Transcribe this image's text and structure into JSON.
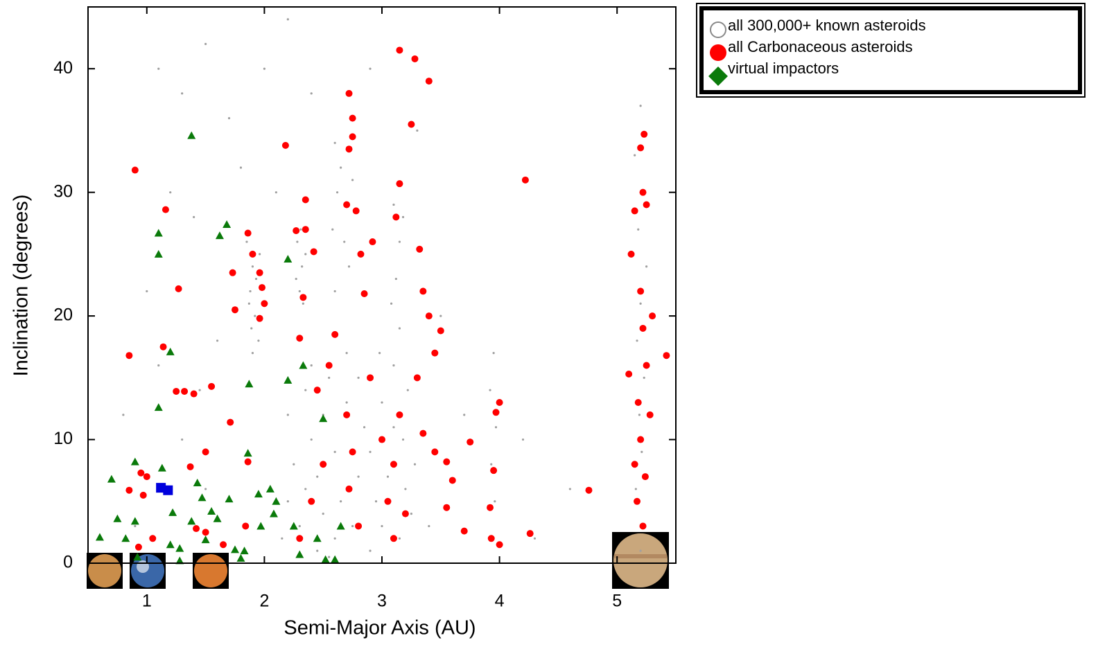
{
  "chart_data": {
    "type": "scatter",
    "x_label": "Semi-Major Axis (AU)",
    "y_label": "Inclination (degrees)",
    "xlim": [
      0.5,
      5.5
    ],
    "ylim": [
      0,
      45
    ],
    "xticks": [
      1,
      2,
      3,
      4,
      5
    ],
    "yticks": [
      0,
      10,
      20,
      30,
      40
    ],
    "series": [
      {
        "name": "all 300,000+ known asteroids",
        "color": "#a0a0a0",
        "marker": "dot",
        "x": [
          1.85,
          1.9,
          1.88,
          1.92,
          1.95,
          1.87,
          1.93,
          1.9,
          1.96,
          1.89,
          2.28,
          2.32,
          2.3,
          2.35,
          2.27,
          2.33,
          2.31,
          2.6,
          2.62,
          2.58,
          2.65,
          2.7,
          2.72,
          2.75,
          2.6,
          2.68,
          3.1,
          3.15,
          3.12,
          3.18,
          3.08,
          3.95,
          3.92,
          3.97,
          3.93,
          3.96,
          3.94,
          5.2,
          5.15,
          5.22,
          5.18,
          5.25,
          5.2,
          5.17,
          5.23,
          5.19,
          5.21,
          5.16,
          5.24,
          5.2,
          1.1,
          1.3,
          1.5,
          1.7,
          1.2,
          1.4,
          1.0,
          1.6,
          0.8,
          1.3,
          1.5,
          0.9,
          2.0,
          2.2,
          2.4,
          1.8,
          2.1,
          3.5,
          3.7,
          3.4,
          4.3,
          4.6,
          3.3,
          2.9,
          4.2,
          1.1,
          1.45,
          2.15,
          2.2,
          2.25,
          2.2,
          2.3,
          2.35,
          2.4,
          2.35,
          2.45,
          2.5,
          2.45,
          2.5,
          2.55,
          2.6,
          2.65,
          2.6,
          2.7,
          2.7,
          2.75,
          2.8,
          2.85,
          2.8,
          2.9,
          2.95,
          2.9,
          3.0,
          3.0,
          3.05,
          3.1,
          3.1,
          3.15,
          3.2,
          3.18,
          3.22,
          3.25,
          3.28,
          2.55,
          2.98,
          3.15,
          2.4
        ],
        "values": [
          26,
          24,
          22,
          20,
          18,
          21,
          23,
          17,
          25,
          19,
          26,
          24,
          22,
          25,
          23,
          21,
          27,
          34,
          30,
          27,
          32,
          29,
          24,
          31,
          22,
          26,
          29,
          26,
          23,
          28,
          21,
          17,
          14,
          11,
          8,
          5,
          2,
          37,
          33,
          30,
          27,
          24,
          21,
          18,
          15,
          12,
          9,
          6,
          3,
          1,
          40,
          38,
          42,
          36,
          30,
          28,
          22,
          18,
          12,
          10,
          6,
          3,
          40,
          44,
          38,
          32,
          30,
          20,
          12,
          3,
          2,
          6,
          35,
          40,
          10,
          16,
          14,
          2,
          5,
          8,
          12,
          3,
          6,
          10,
          14,
          1,
          4,
          7,
          12,
          15,
          2,
          5,
          9,
          13,
          17,
          3,
          7,
          11,
          15,
          1,
          5,
          9,
          13,
          3,
          7,
          11,
          16,
          2,
          6,
          10,
          14,
          4,
          8,
          0.5,
          17,
          19,
          16
        ]
      },
      {
        "name": "all Carbonaceous asteroids",
        "color": "#ff0000",
        "marker": "circle",
        "x": [
          0.9,
          1.16,
          1.27,
          1.14,
          0.85,
          1.25,
          1.32,
          1.4,
          1.55,
          1.71,
          1.5,
          1.86,
          1.84,
          1.0,
          0.95,
          0.97,
          0.85,
          1.05,
          0.93,
          1.37,
          1.42,
          1.5,
          1.65,
          1.73,
          1.86,
          1.9,
          1.96,
          1.98,
          2.0,
          1.96,
          1.75,
          2.18,
          2.27,
          2.35,
          2.33,
          2.35,
          2.3,
          2.42,
          2.72,
          2.75,
          2.75,
          2.72,
          2.7,
          2.78,
          2.82,
          2.92,
          2.85,
          3.15,
          3.28,
          3.4,
          3.25,
          3.15,
          3.12,
          3.32,
          3.35,
          3.4,
          3.5,
          3.45,
          4.22,
          2.6,
          2.55,
          2.45,
          2.7,
          2.75,
          2.72,
          2.8,
          2.5,
          2.4,
          2.3,
          2.9,
          3.0,
          3.05,
          3.1,
          3.15,
          3.1,
          3.2,
          3.3,
          3.35,
          3.45,
          3.55,
          3.6,
          3.55,
          3.7,
          3.75,
          3.92,
          3.95,
          3.97,
          4.0,
          3.93,
          4.0,
          4.26,
          4.76,
          5.12,
          5.15,
          5.2,
          5.23,
          5.22,
          5.25,
          5.2,
          5.22,
          5.25,
          5.18,
          5.2,
          5.24,
          5.17,
          5.22,
          5.3,
          5.42,
          5.1,
          5.28,
          5.15
        ],
        "values": [
          31.8,
          28.6,
          22.2,
          17.5,
          16.8,
          13.9,
          13.9,
          13.7,
          14.3,
          11.4,
          9,
          8.2,
          3,
          7,
          7.3,
          5.5,
          5.9,
          2,
          1.3,
          7.8,
          2.8,
          2.5,
          1.5,
          23.5,
          26.7,
          25,
          23.5,
          22.3,
          21,
          19.8,
          20.5,
          33.8,
          26.9,
          27,
          21.5,
          29.4,
          18.2,
          25.2,
          38,
          36,
          34.5,
          33.5,
          29,
          28.5,
          25,
          26,
          21.8,
          41.5,
          40.8,
          39,
          35.5,
          30.7,
          28,
          25.4,
          22,
          20,
          18.8,
          17,
          31,
          18.5,
          16,
          14,
          12,
          9,
          6,
          3,
          8,
          5,
          2,
          15,
          10,
          5,
          2,
          12,
          8,
          4,
          15,
          10.5,
          9,
          8.2,
          6.7,
          4.5,
          2.6,
          9.8,
          4.5,
          7.5,
          12.2,
          13,
          2,
          1.5,
          2.4,
          5.9,
          25,
          28.5,
          33.6,
          34.7,
          30,
          29,
          22,
          19,
          16,
          13,
          10,
          7,
          5,
          3,
          20,
          16.8,
          15.3,
          12,
          8
        ]
      },
      {
        "name": "virtual impactors",
        "color": "#0a7a0a",
        "marker": "triangle",
        "x": [
          0.6,
          0.7,
          0.75,
          0.82,
          0.9,
          0.9,
          0.92,
          1.1,
          1.1,
          1.2,
          1.1,
          1.13,
          1.22,
          1.2,
          1.28,
          1.28,
          1.38,
          1.38,
          1.43,
          1.47,
          1.5,
          1.55,
          1.6,
          1.68,
          1.62,
          1.7,
          1.75,
          1.8,
          1.83,
          1.87,
          1.86,
          1.95,
          1.97,
          2.05,
          2.08,
          2.1,
          2.2,
          2.2,
          2.33,
          2.25,
          2.3,
          2.45,
          2.5,
          2.52,
          2.6,
          2.65
        ],
        "values": [
          2.1,
          6.8,
          3.6,
          2,
          8.2,
          3.4,
          0.5,
          26.7,
          25,
          17.1,
          12.6,
          7.7,
          4.1,
          1.5,
          1.2,
          0.2,
          34.6,
          3.4,
          6.5,
          5.3,
          1.9,
          4.2,
          3.6,
          27.4,
          26.5,
          5.2,
          1.1,
          0.4,
          1,
          14.5,
          8.9,
          5.6,
          3,
          6,
          4,
          5,
          24.6,
          14.8,
          16,
          3,
          0.7,
          2,
          11.7,
          0.3,
          0.3,
          3
        ]
      },
      {
        "color": "#0000dd",
        "marker": "square",
        "x": [
          1.12,
          1.18
        ],
        "values": [
          6.1,
          5.9
        ]
      }
    ]
  }
}
